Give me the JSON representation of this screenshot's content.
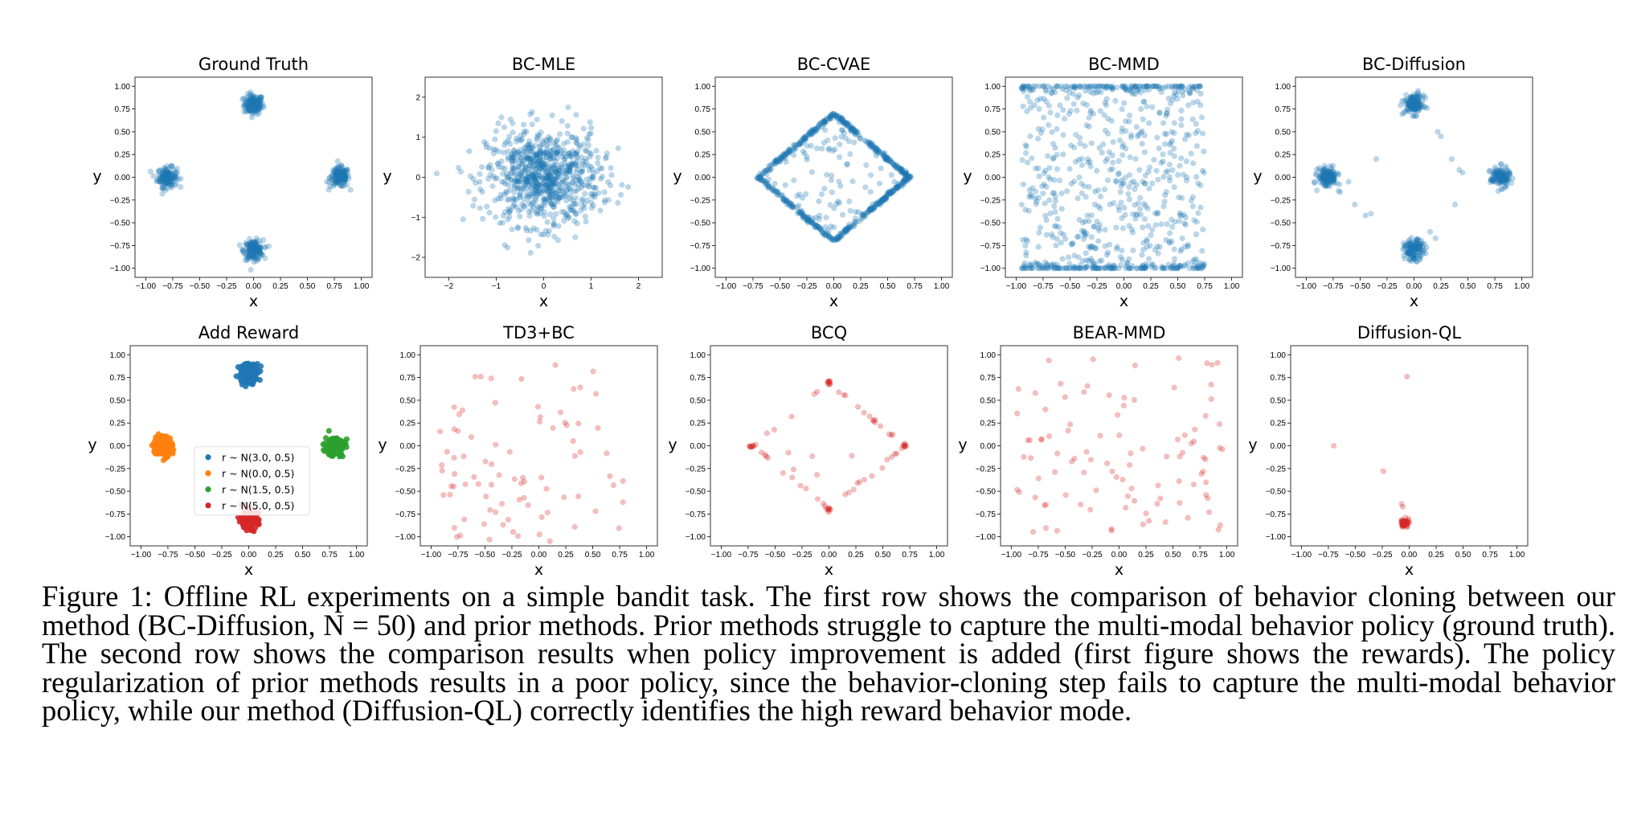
{
  "figure": {
    "caption": "Figure 1: Offline RL experiments on a simple bandit task. The first row shows the comparison of behavior cloning between our method (BC-Diffusion, N = 50) and prior methods. Prior methods struggle to capture the multi-modal behavior policy (ground truth). The second row shows the comparison results when policy improvement is added (first figure shows the rewards). The policy regularization of prior methods results in a poor policy, since the behavior-cloning step fails to capture the multi-modal behavior policy, while our method (Diffusion-QL) correctly identifies the high reward behavior mode."
  },
  "colors": {
    "blue": "#1f77b4",
    "orange": "#ff7f0e",
    "green": "#2ca02c",
    "red": "#d62728"
  },
  "chart_data": [
    {
      "type": "scatter",
      "title": "Ground Truth",
      "xlabel": "x",
      "ylabel": "y",
      "xlim": [
        -1.1,
        1.1
      ],
      "ylim": [
        -1.1,
        1.1
      ],
      "xticks": [
        "-1.00",
        "-0.75",
        "-0.50",
        "-0.25",
        "0.00",
        "0.25",
        "0.50",
        "0.75",
        "1.00"
      ],
      "yticks": [
        "-1.00",
        "-0.75",
        "-0.50",
        "-0.25",
        "0.00",
        "0.25",
        "0.50",
        "0.75",
        "1.00"
      ],
      "series": [
        {
          "color": "blue",
          "alpha": 0.3,
          "clusters": [
            [
              0,
              0.8
            ],
            [
              -0.8,
              0
            ],
            [
              0.8,
              0
            ],
            [
              0,
              -0.8
            ]
          ],
          "sd": 0.045,
          "n": 150
        }
      ]
    },
    {
      "type": "scatter",
      "title": "BC-MLE",
      "xlabel": "x",
      "ylabel": "y",
      "xlim": [
        -2.5,
        2.5
      ],
      "ylim": [
        -2.5,
        2.5
      ],
      "xticks": [
        "-2",
        "-1",
        "0",
        "1",
        "2"
      ],
      "yticks": [
        "-2",
        "-1",
        "0",
        "1",
        "2"
      ],
      "series": [
        {
          "color": "blue",
          "alpha": 0.3,
          "gaussian": [
            0,
            0
          ],
          "sd": 0.6,
          "n": 800
        }
      ]
    },
    {
      "type": "scatter",
      "title": "BC-CVAE",
      "xlabel": "x",
      "ylabel": "y",
      "xlim": [
        -1.1,
        1.1
      ],
      "ylim": [
        -1.1,
        1.1
      ],
      "xticks": [
        "-1.00",
        "-0.75",
        "-0.50",
        "-0.25",
        "0.00",
        "0.25",
        "0.50",
        "0.75",
        "1.00"
      ],
      "yticks": [
        "-1.00",
        "-0.75",
        "-0.50",
        "-0.25",
        "0.00",
        "0.25",
        "0.50",
        "0.75",
        "1.00"
      ],
      "series": [
        {
          "color": "blue",
          "alpha": 0.3,
          "diamond": 0.7,
          "n": 600,
          "interior": 90
        }
      ]
    },
    {
      "type": "scatter",
      "title": "BC-MMD",
      "xlabel": "x",
      "ylabel": "y",
      "xlim": [
        -1.1,
        1.1
      ],
      "ylim": [
        -1.1,
        1.1
      ],
      "xticks": [
        "-1.00",
        "-0.75",
        "-0.50",
        "-0.25",
        "0.00",
        "0.25",
        "0.50",
        "0.75",
        "1.00"
      ],
      "yticks": [
        "-1.00",
        "-0.75",
        "-0.50",
        "-0.25",
        "0.00",
        "0.25",
        "0.50",
        "0.75",
        "1.00"
      ],
      "series": [
        {
          "color": "blue",
          "alpha": 0.3,
          "uniform": [
            [
              -0.95,
              0.75
            ],
            [
              -1.0,
              1.0
            ]
          ],
          "n": 800,
          "edge_bias": true
        }
      ]
    },
    {
      "type": "scatter",
      "title": "BC-Diffusion",
      "xlabel": "x",
      "ylabel": "y",
      "xlim": [
        -1.1,
        1.1
      ],
      "ylim": [
        -1.1,
        1.1
      ],
      "xticks": [
        "-1.00",
        "-0.75",
        "-0.50",
        "-0.25",
        "0.00",
        "0.25",
        "0.50",
        "0.75",
        "1.00"
      ],
      "yticks": [
        "-1.00",
        "-0.75",
        "-0.50",
        "-0.25",
        "0.00",
        "0.25",
        "0.50",
        "0.75",
        "1.00"
      ],
      "series": [
        {
          "color": "blue",
          "alpha": 0.3,
          "clusters": [
            [
              0,
              0.8
            ],
            [
              -0.8,
              0
            ],
            [
              0.8,
              0
            ],
            [
              0,
              -0.8
            ]
          ],
          "sd": 0.045,
          "n": 140,
          "outliers": [
            [
              0.22,
              0.5
            ],
            [
              0.25,
              0.45
            ],
            [
              0.35,
              0.2
            ],
            [
              0.42,
              0.08
            ],
            [
              0.45,
              0.05
            ],
            [
              0.38,
              -0.3
            ],
            [
              -0.35,
              0.2
            ],
            [
              -0.55,
              -0.3
            ],
            [
              -0.45,
              -0.42
            ],
            [
              -0.4,
              -0.4
            ],
            [
              0.15,
              -0.6
            ],
            [
              0.2,
              -0.67
            ],
            [
              -0.7,
              -0.15
            ]
          ]
        }
      ]
    },
    {
      "type": "scatter",
      "title": "Add Reward",
      "xlabel": "x",
      "ylabel": "y",
      "xlim": [
        -1.1,
        1.1
      ],
      "ylim": [
        -1.1,
        1.1
      ],
      "xticks": [
        "-1.00",
        "-0.75",
        "-0.50",
        "-0.25",
        "0.00",
        "0.25",
        "0.50",
        "0.75",
        "1.00"
      ],
      "yticks": [
        "-1.00",
        "-0.75",
        "-0.50",
        "-0.25",
        "0.00",
        "0.25",
        "0.50",
        "0.75",
        "1.00"
      ],
      "legend_position": "center-left",
      "series": [
        {
          "name": "r ~ N(3.0, 0.5)",
          "color": "blue",
          "alpha": 0.9,
          "clusters": [
            [
              0,
              0.8
            ]
          ],
          "sd": 0.045,
          "n": 150
        },
        {
          "name": "r ~ N(0.0, 0.5)",
          "color": "orange",
          "alpha": 0.9,
          "clusters": [
            [
              -0.8,
              0
            ]
          ],
          "sd": 0.045,
          "n": 150
        },
        {
          "name": "r ~ N(1.5, 0.5)",
          "color": "green",
          "alpha": 0.9,
          "clusters": [
            [
              0.8,
              0
            ]
          ],
          "sd": 0.045,
          "n": 150
        },
        {
          "name": "r ~ N(5.0, 0.5)",
          "color": "red",
          "alpha": 0.9,
          "clusters": [
            [
              0,
              -0.8
            ]
          ],
          "sd": 0.045,
          "n": 150
        }
      ]
    },
    {
      "type": "scatter",
      "title": "TD3+BC",
      "xlabel": "x",
      "ylabel": "y",
      "xlim": [
        -1.1,
        1.1
      ],
      "ylim": [
        -1.1,
        1.1
      ],
      "xticks": [
        "-1.00",
        "-0.75",
        "-0.50",
        "-0.25",
        "0.00",
        "0.25",
        "0.50",
        "0.75",
        "1.00"
      ],
      "yticks": [
        "-1.00",
        "-0.75",
        "-0.50",
        "-0.25",
        "0.00",
        "0.25",
        "0.50",
        "0.75",
        "1.00"
      ],
      "series": [
        {
          "color": "red",
          "alpha": 0.3,
          "uniform": [
            [
              -0.95,
              0.8
            ],
            [
              -1.05,
              0.92
            ]
          ],
          "n": 85
        }
      ]
    },
    {
      "type": "scatter",
      "title": "BCQ",
      "xlabel": "x",
      "ylabel": "y",
      "xlim": [
        -1.1,
        1.1
      ],
      "ylim": [
        -1.1,
        1.1
      ],
      "xticks": [
        "-1.00",
        "-0.75",
        "-0.50",
        "-0.25",
        "0.00",
        "0.25",
        "0.50",
        "0.75",
        "1.00"
      ],
      "yticks": [
        "-1.00",
        "-0.75",
        "-0.50",
        "-0.25",
        "0.00",
        "0.25",
        "0.50",
        "0.75",
        "1.00"
      ],
      "series": [
        {
          "color": "red",
          "alpha": 0.3,
          "diamond": 0.7,
          "n": 45,
          "interior": 6,
          "clusters": [
            [
              0,
              0.7
            ],
            [
              -0.72,
              0
            ],
            [
              0.7,
              0
            ],
            [
              0,
              -0.7
            ]
          ],
          "sd": 0.01,
          "ncluster": 8
        }
      ]
    },
    {
      "type": "scatter",
      "title": "BEAR-MMD",
      "xlabel": "x",
      "ylabel": "y",
      "xlim": [
        -1.1,
        1.1
      ],
      "ylim": [
        -1.1,
        1.1
      ],
      "xticks": [
        "-1.00",
        "-0.75",
        "-0.50",
        "-0.25",
        "0.00",
        "0.25",
        "0.50",
        "0.75",
        "1.00"
      ],
      "yticks": [
        "-1.00",
        "-0.75",
        "-0.50",
        "-0.25",
        "0.00",
        "0.25",
        "0.50",
        "0.75",
        "1.00"
      ],
      "series": [
        {
          "color": "red",
          "alpha": 0.3,
          "uniform": [
            [
              -0.98,
              0.98
            ],
            [
              -0.98,
              0.98
            ]
          ],
          "n": 100
        }
      ]
    },
    {
      "type": "scatter",
      "title": "Diffusion-QL",
      "xlabel": "x",
      "ylabel": "y",
      "xlim": [
        -1.1,
        1.1
      ],
      "ylim": [
        -1.1,
        1.1
      ],
      "xticks": [
        "-1.00",
        "-0.75",
        "-0.50",
        "-0.25",
        "0.00",
        "0.25",
        "0.50",
        "0.75",
        "1.00"
      ],
      "yticks": [
        "-1.00",
        "-0.75",
        "-0.50",
        "-0.25",
        "0.00",
        "0.25",
        "0.50",
        "0.75",
        "1.00"
      ],
      "series": [
        {
          "color": "red",
          "alpha": 0.3,
          "clusters": [
            [
              -0.04,
              -0.85
            ]
          ],
          "sd": 0.02,
          "n": 70,
          "outliers": [
            [
              -0.7,
              0.0
            ],
            [
              -0.24,
              -0.28
            ],
            [
              -0.02,
              0.76
            ],
            [
              -0.07,
              -0.64
            ],
            [
              -0.06,
              -0.67
            ],
            [
              0.0,
              -0.84
            ]
          ]
        }
      ]
    }
  ]
}
